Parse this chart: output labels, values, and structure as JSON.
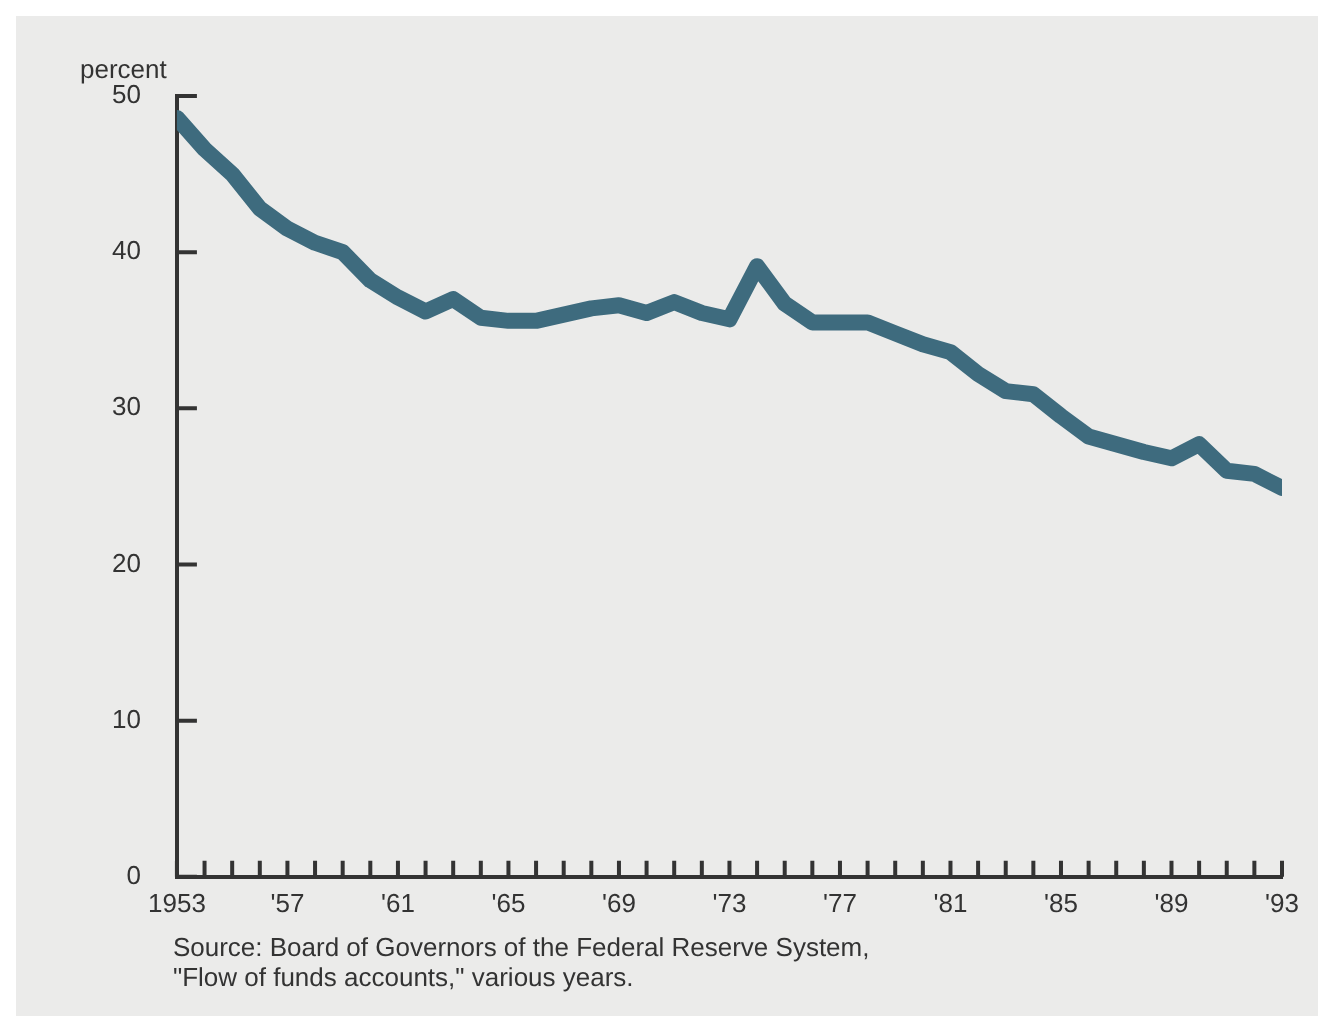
{
  "chart_data": {
    "type": "line",
    "ylabel": "percent",
    "x": [
      1953,
      1954,
      1955,
      1956,
      1957,
      1958,
      1959,
      1960,
      1961,
      1962,
      1963,
      1964,
      1965,
      1966,
      1967,
      1968,
      1969,
      1970,
      1971,
      1972,
      1973,
      1974,
      1975,
      1976,
      1977,
      1978,
      1979,
      1980,
      1981,
      1982,
      1983,
      1984,
      1985,
      1986,
      1987,
      1988,
      1989,
      1990,
      1991,
      1992,
      1993
    ],
    "series": [
      {
        "color": "#3e6b7e",
        "values": [
          48.6,
          46.6,
          45.0,
          42.8,
          41.5,
          40.6,
          40.0,
          38.2,
          37.1,
          36.2,
          37.0,
          35.8,
          35.6,
          35.6,
          36.0,
          36.4,
          36.6,
          36.1,
          36.8,
          36.1,
          35.7,
          39.1,
          36.7,
          35.5,
          35.5,
          35.5,
          34.8,
          34.1,
          33.6,
          32.2,
          31.1,
          30.9,
          29.5,
          28.2,
          27.7,
          27.2,
          26.8,
          27.7,
          26.0,
          25.8,
          24.9
        ]
      }
    ],
    "xlim": [
      1953,
      1993
    ],
    "xticks": [
      {
        "value": 1953,
        "label": "1953"
      },
      {
        "value": 1954,
        "label": null
      },
      {
        "value": 1955,
        "label": null
      },
      {
        "value": 1956,
        "label": null
      },
      {
        "value": 1957,
        "label": "'57"
      },
      {
        "value": 1958,
        "label": null
      },
      {
        "value": 1959,
        "label": null
      },
      {
        "value": 1960,
        "label": null
      },
      {
        "value": 1961,
        "label": "'61"
      },
      {
        "value": 1962,
        "label": null
      },
      {
        "value": 1963,
        "label": null
      },
      {
        "value": 1964,
        "label": null
      },
      {
        "value": 1965,
        "label": "'65"
      },
      {
        "value": 1966,
        "label": null
      },
      {
        "value": 1967,
        "label": null
      },
      {
        "value": 1968,
        "label": null
      },
      {
        "value": 1969,
        "label": "'69"
      },
      {
        "value": 1970,
        "label": null
      },
      {
        "value": 1971,
        "label": null
      },
      {
        "value": 1972,
        "label": null
      },
      {
        "value": 1973,
        "label": "'73"
      },
      {
        "value": 1974,
        "label": null
      },
      {
        "value": 1975,
        "label": null
      },
      {
        "value": 1976,
        "label": null
      },
      {
        "value": 1977,
        "label": "'77"
      },
      {
        "value": 1978,
        "label": null
      },
      {
        "value": 1979,
        "label": null
      },
      {
        "value": 1980,
        "label": null
      },
      {
        "value": 1981,
        "label": "'81"
      },
      {
        "value": 1982,
        "label": null
      },
      {
        "value": 1983,
        "label": null
      },
      {
        "value": 1984,
        "label": null
      },
      {
        "value": 1985,
        "label": "'85"
      },
      {
        "value": 1986,
        "label": null
      },
      {
        "value": 1987,
        "label": null
      },
      {
        "value": 1988,
        "label": null
      },
      {
        "value": 1989,
        "label": "'89"
      },
      {
        "value": 1990,
        "label": null
      },
      {
        "value": 1991,
        "label": null
      },
      {
        "value": 1992,
        "label": null
      },
      {
        "value": 1993,
        "label": "'93"
      }
    ],
    "ylim": [
      0,
      50
    ],
    "yticks": [
      0,
      10,
      20,
      30,
      40,
      50
    ],
    "grid": false,
    "legend": false,
    "marker": "none",
    "line_style": "solid",
    "annotations": [
      "Source: Board of Governors of the Federal Reserve System,\n\"Flow of funds accounts,\" various years."
    ]
  }
}
